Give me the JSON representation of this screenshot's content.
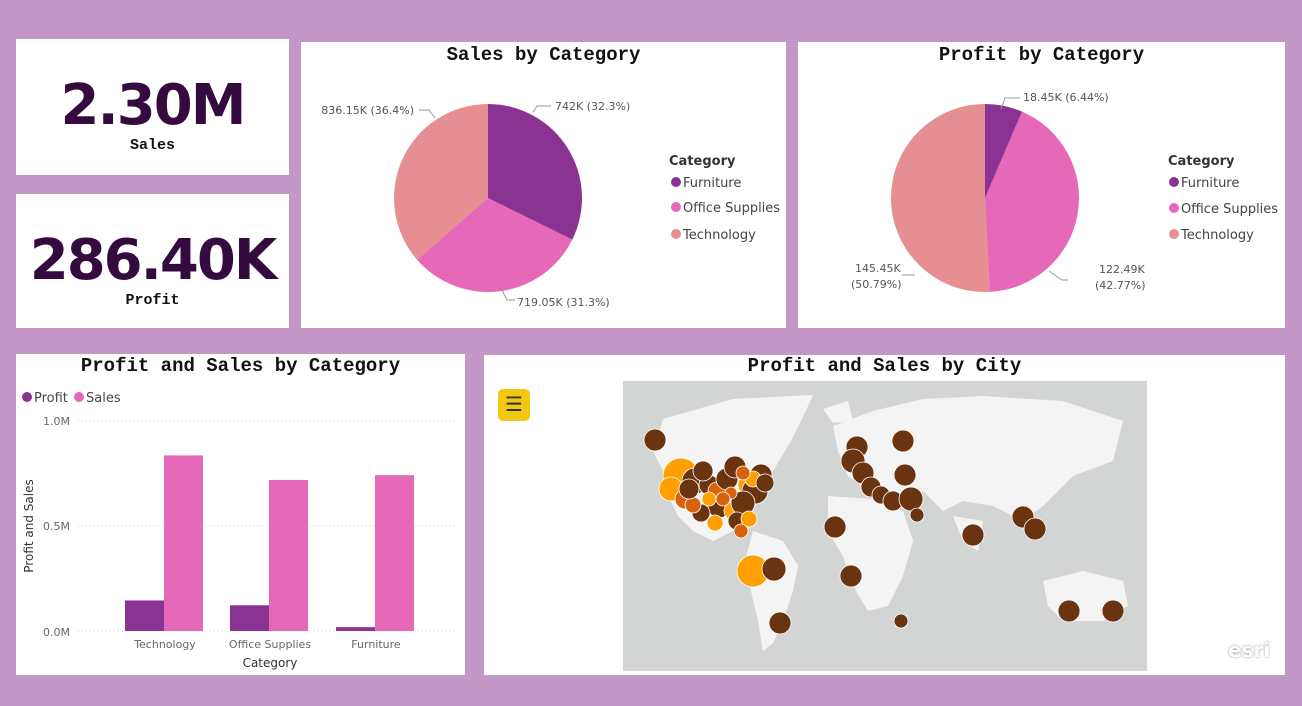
{
  "kpis": {
    "sales": {
      "value": "2.30M",
      "label": "Sales"
    },
    "profit": {
      "value": "286.40K",
      "label": "Profit"
    }
  },
  "sales_by_category": {
    "title": "Sales by Category",
    "legend_title": "Category",
    "labels": [
      "742K (32.3%)",
      "719.05K (31.3%)",
      "836.15K (36.4%)"
    ]
  },
  "profit_by_category": {
    "title": "Profit by Category",
    "legend_title": "Category",
    "labels": [
      "18.45K (6.44%)",
      "122.49K",
      "(42.77%)",
      "145.45K",
      "(50.79%)"
    ]
  },
  "bar_chart": {
    "title": "Profit and Sales by Category",
    "legend": [
      "Profit",
      "Sales"
    ],
    "y_ticks": [
      "1.0M",
      "0.5M",
      "0.0M"
    ],
    "ylabel": "Profit and Sales",
    "xlabel": "Category"
  },
  "map_visual": {
    "title": "Profit and Sales by City",
    "menu_icon": "hamburger-menu-icon",
    "attribution": "esri"
  },
  "colors": {
    "furniture": "#8b3393",
    "office_supplies": "#e668b8",
    "technology": "#e68f93",
    "profit": "#8b3393",
    "sales": "#e668b8",
    "kpi_text": "#350a3f",
    "map_dark": "#6b3410",
    "map_orange": "#ff9f00",
    "map_mid": "#d9620c",
    "background": "#c497c9"
  },
  "chart_data": [
    {
      "type": "pie",
      "title": "Sales by Category",
      "categories": [
        "Furniture",
        "Office Supplies",
        "Technology"
      ],
      "values": [
        742000,
        719050,
        836150
      ],
      "percent": [
        32.3,
        31.3,
        36.4
      ],
      "legend": "right"
    },
    {
      "type": "pie",
      "title": "Profit by Category",
      "categories": [
        "Furniture",
        "Office Supplies",
        "Technology"
      ],
      "values": [
        18450,
        122490,
        145450
      ],
      "percent": [
        6.44,
        42.77,
        50.79
      ],
      "legend": "right"
    },
    {
      "type": "bar",
      "title": "Profit and Sales by Category",
      "categories": [
        "Technology",
        "Office Supplies",
        "Furniture"
      ],
      "series": [
        {
          "name": "Profit",
          "values": [
            145450,
            122490,
            18450
          ]
        },
        {
          "name": "Sales",
          "values": [
            836150,
            719050,
            742000
          ]
        }
      ],
      "xlabel": "Category",
      "ylabel": "Profit and Sales",
      "ylim": [
        0,
        1000000
      ],
      "legend": "top-left",
      "grid": true
    }
  ]
}
